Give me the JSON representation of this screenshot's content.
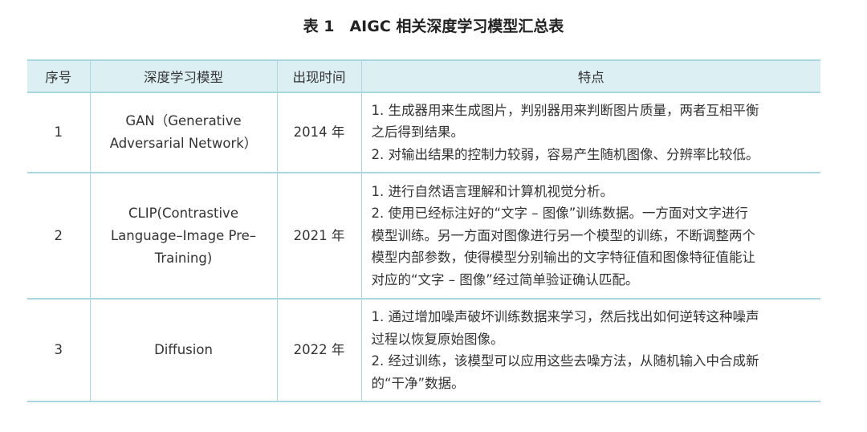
{
  "title": "表 1　AIGC 相关深度学习模型汇总表",
  "headers": [
    "序号",
    "深度学习模型",
    "出现时间",
    "特点"
  ],
  "rows": [
    {
      "no": "1",
      "model": [
        "GAN（Generative",
        "Adversarial Network）"
      ],
      "year": "2014 年",
      "features": [
        "1. 生成器用来生成图片，判别器用来判断图片质量，两者互相平衡",
        "之后得到结果。",
        "2. 对输出结果的控制力较弱，容易产生随机图像、分辨率比较低。"
      ]
    },
    {
      "no": "2",
      "model": [
        "CLIP(Contrastive",
        "Language–Image Pre–",
        "Training)"
      ],
      "year": "2021 年",
      "features": [
        "1. 进行自然语言理解和计算机视觉分析。",
        "2. 使用已经标注好的“文字 – 图像”训练数据。一方面对文字进行",
        "模型训练。另一方面对图像进行另一个模型的训练，不断调整两个",
        "模型内部参数，使得模型分别输出的文字特征值和图像特征值能让",
        "对应的“文字 – 图像”经过简单验证确认匹配。"
      ]
    },
    {
      "no": "3",
      "model": [
        "Diffusion"
      ],
      "year": "2022 年",
      "features": [
        "1. 通过增加噪声破坏训练数据来学习，然后找出如何逆转这种噪声",
        "过程以恢复原始图像。",
        "2. 经过训练，该模型可以应用这些去噪方法，从随机输入中合成新",
        "的“干净”数据。"
      ]
    }
  ],
  "colors": {
    "header_bg": "#dcf0f4",
    "border": "#a9d7e0"
  }
}
